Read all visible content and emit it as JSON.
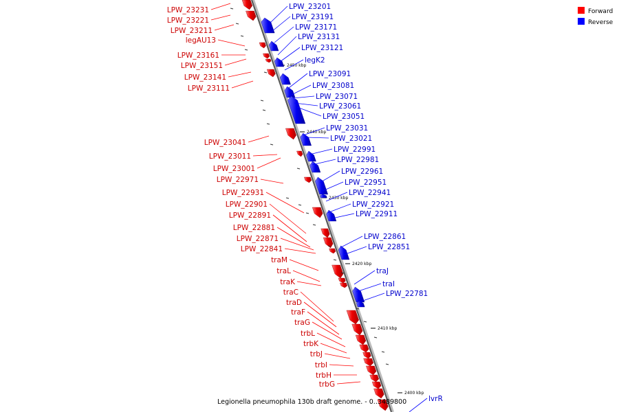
{
  "legend": {
    "forward_label": "Forward",
    "reverse_label": "Reverse",
    "forward_color": "#ff0000",
    "reverse_color": "#0000ff"
  },
  "caption": "Legionella pneumophila 130b draft genome. - 0..3489800",
  "ticks": [
    "2450 kbp",
    "2440 kbp",
    "2430 kbp",
    "2420 kbp",
    "2410 kbp",
    "2400 kbp"
  ],
  "forward_labels": [
    "LPW_23231",
    "LPW_23221",
    "LPW_23211",
    "legAU13",
    "LPW_23161",
    "LPW_23151",
    "LPW_23141",
    "LPW_23111",
    "LPW_23041",
    "LPW_23011",
    "LPW_23001",
    "LPW_22971",
    "LPW_22931",
    "LPW_22901",
    "LPW_22891",
    "LPW_22881",
    "LPW_22871",
    "LPW_22841",
    "traM",
    "traL",
    "traK",
    "traC",
    "traD",
    "traF",
    "traG",
    "trbL",
    "trbK",
    "trbJ",
    "trbI",
    "trbH",
    "trbG"
  ],
  "reverse_labels": [
    "LPW_23201",
    "LPW_23191",
    "LPW_23171",
    "LPW_23131",
    "LPW_23121",
    "legK2",
    "LPW_23091",
    "LPW_23081",
    "LPW_23071",
    "LPW_23061",
    "LPW_23051",
    "LPW_23031",
    "LPW_23021",
    "LPW_22991",
    "LPW_22981",
    "LPW_22961",
    "LPW_22951",
    "LPW_22941",
    "LPW_22921",
    "LPW_22911",
    "LPW_22861",
    "LPW_22851",
    "traJ",
    "traI",
    "LPW_22781",
    "lvrR"
  ]
}
